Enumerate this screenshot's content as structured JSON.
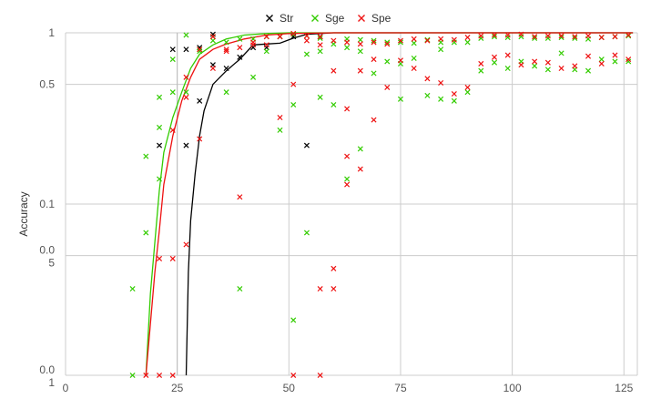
{
  "chart_data": {
    "type": "scatter",
    "title": "",
    "xlabel": "",
    "ylabel": "Accuracy",
    "xlim": [
      0,
      128
    ],
    "x_ticks": [
      0,
      25,
      50,
      75,
      100,
      125
    ],
    "y_scale": "log",
    "y_tick_labels": [
      {
        "value": 1,
        "label": "1"
      },
      {
        "value": 0.5,
        "label": "0.5"
      },
      {
        "value": 0.1,
        "label": "0.1"
      },
      {
        "value": 0.05,
        "label": "0.0\n5"
      },
      {
        "value": 0.01,
        "label": "0.0\n1"
      }
    ],
    "grid": true,
    "legend_position": "top",
    "series": [
      {
        "name": "Str",
        "color": "#000000",
        "points": [
          [
            21,
            0.22
          ],
          [
            24,
            0.8
          ],
          [
            27,
            0.8
          ],
          [
            27,
            0.22
          ],
          [
            30,
            0.82
          ],
          [
            30,
            0.4
          ],
          [
            33,
            0.98
          ],
          [
            33,
            0.65
          ],
          [
            36,
            0.62
          ],
          [
            39,
            0.72
          ],
          [
            42,
            0.82
          ],
          [
            45,
            0.82
          ],
          [
            48,
            0.95
          ],
          [
            51,
            0.95
          ],
          [
            54,
            0.22
          ],
          [
            57,
            0.95
          ]
        ],
        "trend": [
          [
            27,
            0.01
          ],
          [
            27.5,
            0.04
          ],
          [
            28,
            0.08
          ],
          [
            29,
            0.15
          ],
          [
            30,
            0.25
          ],
          [
            31,
            0.35
          ],
          [
            33,
            0.5
          ],
          [
            36,
            0.6
          ],
          [
            39,
            0.7
          ],
          [
            42,
            0.85
          ],
          [
            45,
            0.86
          ],
          [
            48,
            0.87
          ],
          [
            51,
            0.93
          ],
          [
            54,
            0.98
          ],
          [
            60,
            1
          ],
          [
            80,
            1
          ],
          [
            100,
            1
          ],
          [
            127,
            1
          ]
        ]
      },
      {
        "name": "Sge",
        "color": "#33cc00",
        "points": [
          [
            15,
            0.032
          ],
          [
            15,
            0.01
          ],
          [
            18,
            0.19
          ],
          [
            18,
            0.068
          ],
          [
            21,
            0.28
          ],
          [
            21,
            0.14
          ],
          [
            21,
            0.42
          ],
          [
            24,
            0.7
          ],
          [
            24,
            0.45
          ],
          [
            27,
            0.97
          ],
          [
            27,
            0.45
          ],
          [
            30,
            0.8
          ],
          [
            30,
            0.78
          ],
          [
            33,
            0.95
          ],
          [
            33,
            0.9
          ],
          [
            36,
            0.88
          ],
          [
            36,
            0.45
          ],
          [
            39,
            0.92
          ],
          [
            39,
            0.032
          ],
          [
            42,
            0.92
          ],
          [
            42,
            0.55
          ],
          [
            45,
            0.95
          ],
          [
            45,
            0.78
          ],
          [
            48,
            0.95
          ],
          [
            48,
            0.27
          ],
          [
            51,
            0.98
          ],
          [
            51,
            0.38
          ],
          [
            51,
            0.021
          ],
          [
            54,
            0.96
          ],
          [
            54,
            0.75
          ],
          [
            54,
            0.068
          ],
          [
            57,
            0.93
          ],
          [
            57,
            0.42
          ],
          [
            57,
            0.78
          ],
          [
            60,
            0.86
          ],
          [
            60,
            0.38
          ],
          [
            63,
            0.92
          ],
          [
            63,
            0.82
          ],
          [
            63,
            0.14
          ],
          [
            66,
            0.91
          ],
          [
            66,
            0.78
          ],
          [
            66,
            0.21
          ],
          [
            69,
            0.9
          ],
          [
            69,
            0.58
          ],
          [
            72,
            0.88
          ],
          [
            72,
            0.68
          ],
          [
            75,
            0.88
          ],
          [
            75,
            0.66
          ],
          [
            75,
            0.41
          ],
          [
            78,
            0.87
          ],
          [
            78,
            0.71
          ],
          [
            81,
            0.91
          ],
          [
            81,
            0.43
          ],
          [
            84,
            0.88
          ],
          [
            84,
            0.41
          ],
          [
            84,
            0.8
          ],
          [
            87,
            0.88
          ],
          [
            87,
            0.4
          ],
          [
            90,
            0.88
          ],
          [
            90,
            0.45
          ],
          [
            93,
            0.93
          ],
          [
            93,
            0.6
          ],
          [
            96,
            0.95
          ],
          [
            96,
            0.67
          ],
          [
            99,
            0.94
          ],
          [
            99,
            0.62
          ],
          [
            102,
            0.95
          ],
          [
            102,
            0.68
          ],
          [
            105,
            0.93
          ],
          [
            105,
            0.64
          ],
          [
            108,
            0.93
          ],
          [
            108,
            0.61
          ],
          [
            111,
            0.94
          ],
          [
            111,
            0.76
          ],
          [
            114,
            0.93
          ],
          [
            114,
            0.61
          ],
          [
            117,
            0.92
          ],
          [
            117,
            0.6
          ],
          [
            120,
            0.94
          ],
          [
            120,
            0.7
          ],
          [
            123,
            0.95
          ],
          [
            123,
            0.68
          ],
          [
            126,
            0.96
          ],
          [
            126,
            0.68
          ]
        ],
        "trend": [
          [
            18,
            0.01
          ],
          [
            19,
            0.03
          ],
          [
            20,
            0.06
          ],
          [
            21,
            0.12
          ],
          [
            22,
            0.2
          ],
          [
            24,
            0.32
          ],
          [
            26,
            0.45
          ],
          [
            28,
            0.62
          ],
          [
            30,
            0.75
          ],
          [
            33,
            0.85
          ],
          [
            36,
            0.92
          ],
          [
            40,
            0.97
          ],
          [
            45,
            0.99
          ],
          [
            50,
            1
          ],
          [
            60,
            1
          ],
          [
            80,
            1
          ],
          [
            100,
            1
          ],
          [
            127,
            1
          ]
        ]
      },
      {
        "name": "Spe",
        "color": "#ee1111",
        "points": [
          [
            18,
            0.01
          ],
          [
            21,
            0.048
          ],
          [
            21,
            0.01
          ],
          [
            24,
            0.048
          ],
          [
            24,
            0.27
          ],
          [
            24,
            0.01
          ],
          [
            27,
            0.55
          ],
          [
            27,
            0.42
          ],
          [
            27,
            0.058
          ],
          [
            30,
            0.8
          ],
          [
            30,
            0.24
          ],
          [
            33,
            0.95
          ],
          [
            33,
            0.62
          ],
          [
            36,
            0.8
          ],
          [
            36,
            0.78
          ],
          [
            39,
            0.82
          ],
          [
            39,
            0.11
          ],
          [
            42,
            0.88
          ],
          [
            42,
            0.85
          ],
          [
            45,
            0.95
          ],
          [
            45,
            0.85
          ],
          [
            48,
            0.95
          ],
          [
            48,
            0.32
          ],
          [
            51,
            0.99
          ],
          [
            51,
            0.5
          ],
          [
            51,
            0.01
          ],
          [
            54,
            0.96
          ],
          [
            54,
            0.9
          ],
          [
            57,
            0.95
          ],
          [
            57,
            0.85
          ],
          [
            57,
            0.032
          ],
          [
            57,
            0.01
          ],
          [
            60,
            0.9
          ],
          [
            60,
            0.6
          ],
          [
            60,
            0.032
          ],
          [
            60,
            0.042
          ],
          [
            63,
            0.88
          ],
          [
            63,
            0.36
          ],
          [
            63,
            0.19
          ],
          [
            63,
            0.13
          ],
          [
            66,
            0.86
          ],
          [
            66,
            0.6
          ],
          [
            66,
            0.16
          ],
          [
            69,
            0.88
          ],
          [
            69,
            0.7
          ],
          [
            69,
            0.31
          ],
          [
            72,
            0.86
          ],
          [
            72,
            0.48
          ],
          [
            75,
            0.9
          ],
          [
            75,
            0.69
          ],
          [
            78,
            0.92
          ],
          [
            78,
            0.62
          ],
          [
            81,
            0.9
          ],
          [
            81,
            0.54
          ],
          [
            84,
            0.92
          ],
          [
            84,
            0.51
          ],
          [
            87,
            0.91
          ],
          [
            87,
            0.44
          ],
          [
            90,
            0.94
          ],
          [
            90,
            0.48
          ],
          [
            93,
            0.96
          ],
          [
            93,
            0.66
          ],
          [
            96,
            0.97
          ],
          [
            96,
            0.72
          ],
          [
            99,
            0.97
          ],
          [
            99,
            0.74
          ],
          [
            102,
            0.98
          ],
          [
            102,
            0.65
          ],
          [
            105,
            0.95
          ],
          [
            105,
            0.68
          ],
          [
            108,
            0.96
          ],
          [
            108,
            0.67
          ],
          [
            111,
            0.96
          ],
          [
            111,
            0.62
          ],
          [
            114,
            0.95
          ],
          [
            114,
            0.64
          ],
          [
            117,
            0.96
          ],
          [
            117,
            0.73
          ],
          [
            120,
            0.94
          ],
          [
            120,
            0.66
          ],
          [
            123,
            0.95
          ],
          [
            123,
            0.74
          ],
          [
            126,
            0.97
          ],
          [
            126,
            0.7
          ]
        ],
        "trend": [
          [
            18,
            0.01
          ],
          [
            19,
            0.02
          ],
          [
            20,
            0.04
          ],
          [
            21,
            0.07
          ],
          [
            22,
            0.13
          ],
          [
            24,
            0.25
          ],
          [
            26,
            0.4
          ],
          [
            28,
            0.55
          ],
          [
            30,
            0.7
          ],
          [
            33,
            0.8
          ],
          [
            36,
            0.86
          ],
          [
            40,
            0.92
          ],
          [
            45,
            0.97
          ],
          [
            50,
            0.99
          ],
          [
            60,
            1
          ],
          [
            80,
            1
          ],
          [
            100,
            1
          ],
          [
            127,
            1
          ]
        ]
      }
    ]
  }
}
